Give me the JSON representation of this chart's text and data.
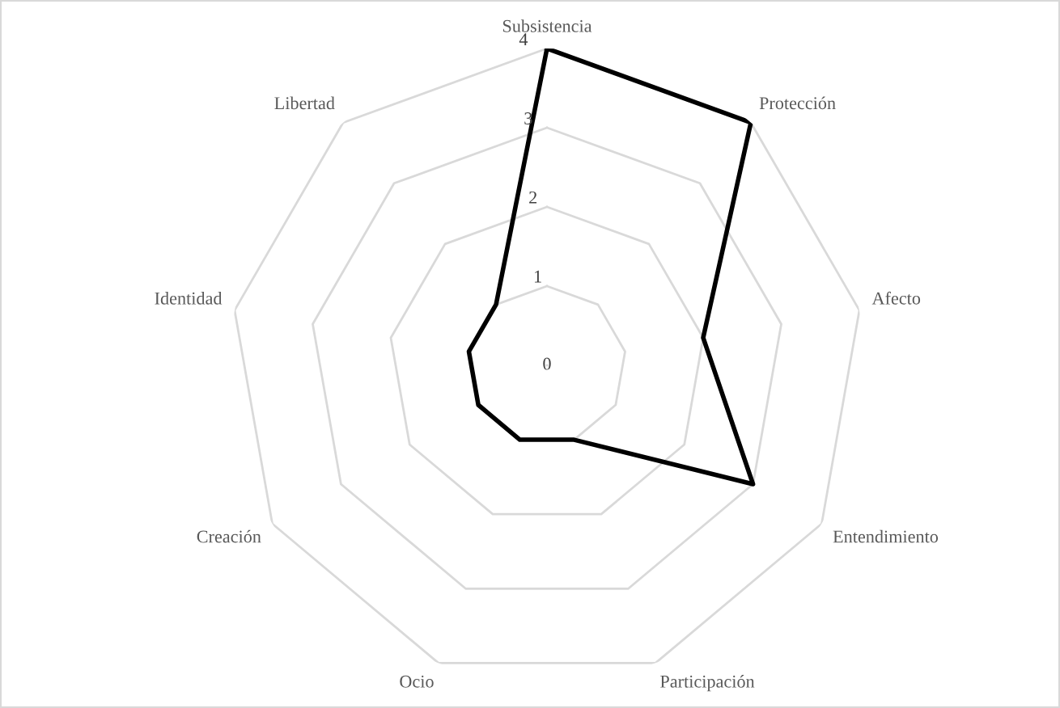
{
  "chart_data": {
    "type": "radar",
    "categories": [
      "Subsistencia",
      "Protección",
      "Afecto",
      "Entendimiento",
      "Participación",
      "Ocio",
      "Creación",
      "Identidad",
      "Libertad"
    ],
    "series": [
      {
        "color": "#000000",
        "values": [
          4,
          4,
          2,
          3,
          1,
          1,
          1,
          1,
          1
        ]
      }
    ],
    "ylim": [
      0,
      4
    ],
    "yticks": [
      0,
      1,
      2,
      3,
      4
    ],
    "grid": true,
    "marker": "none"
  }
}
